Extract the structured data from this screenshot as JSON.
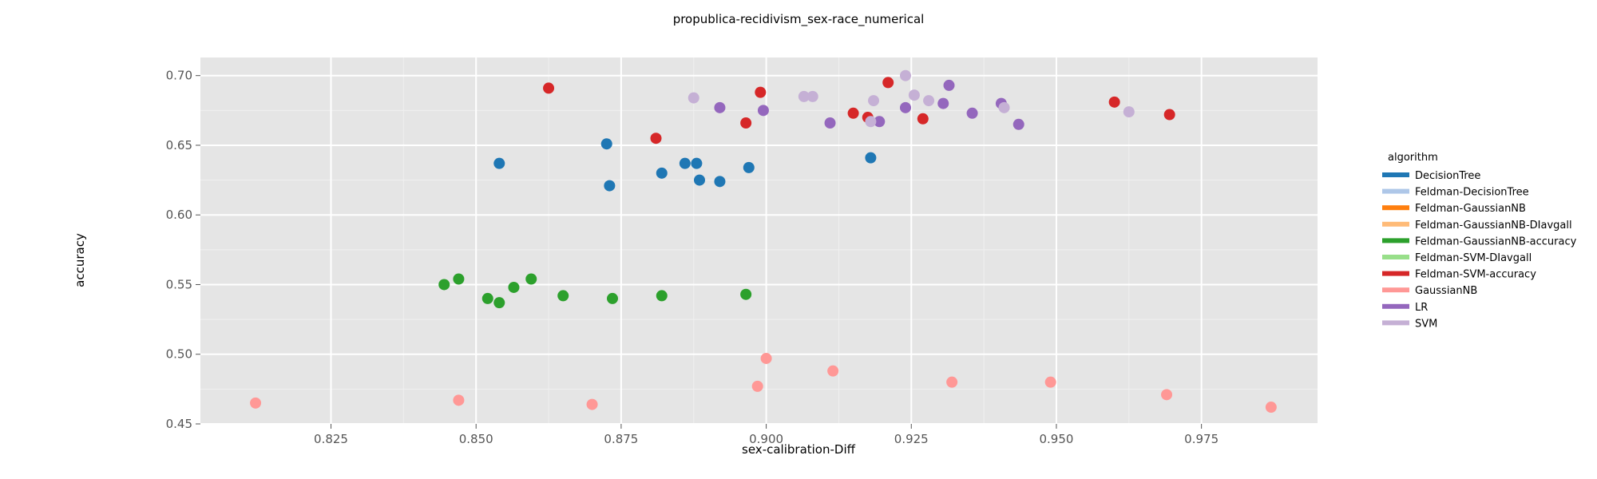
{
  "chart_data": {
    "type": "scatter",
    "title": "propublica-recidivism_sex-race_numerical",
    "xlabel": "sex-calibration-Diff",
    "ylabel": "accuracy",
    "xlim": [
      0.8025,
      0.995
    ],
    "ylim": [
      0.45,
      0.713
    ],
    "xticks": [
      0.825,
      0.85,
      0.875,
      0.9,
      0.925,
      0.95,
      0.975
    ],
    "xtick_labels": [
      "0.825",
      "0.850",
      "0.875",
      "0.900",
      "0.925",
      "0.950",
      "0.975"
    ],
    "yticks": [
      0.45,
      0.5,
      0.55,
      0.6,
      0.65,
      0.7
    ],
    "ytick_labels": [
      "0.45",
      "0.50",
      "0.55",
      "0.60",
      "0.65",
      "0.70"
    ],
    "grid": true,
    "legend_title": "algorithm",
    "legend_position": "right",
    "series": [
      {
        "name": "DecisionTree",
        "color": "#1f77b4",
        "x": [
          0.854,
          0.8725,
          0.873,
          0.882,
          0.886,
          0.888,
          0.8885,
          0.892,
          0.897,
          0.918
        ],
        "y": [
          0.637,
          0.651,
          0.621,
          0.63,
          0.637,
          0.637,
          0.625,
          0.624,
          0.634,
          0.641
        ]
      },
      {
        "name": "Feldman-DecisionTree",
        "color": "#aec7e8",
        "x": [],
        "y": []
      },
      {
        "name": "Feldman-GaussianNB",
        "color": "#ff7f0e",
        "x": [],
        "y": []
      },
      {
        "name": "Feldman-GaussianNB-DIavgall",
        "color": "#ffbb78",
        "x": [],
        "y": []
      },
      {
        "name": "Feldman-GaussianNB-accuracy",
        "color": "#2ca02c",
        "x": [
          0.8445,
          0.847,
          0.852,
          0.854,
          0.8565,
          0.8595,
          0.865,
          0.8735,
          0.882,
          0.8965
        ],
        "y": [
          0.55,
          0.554,
          0.54,
          0.537,
          0.548,
          0.554,
          0.542,
          0.54,
          0.542,
          0.543
        ]
      },
      {
        "name": "Feldman-SVM-DIavgall",
        "color": "#98df8a",
        "x": [],
        "y": []
      },
      {
        "name": "Feldman-SVM-accuracy",
        "color": "#d62728",
        "x": [
          0.8625,
          0.881,
          0.8965,
          0.899,
          0.915,
          0.9175,
          0.921,
          0.927,
          0.96,
          0.9695
        ],
        "y": [
          0.691,
          0.655,
          0.666,
          0.688,
          0.673,
          0.67,
          0.695,
          0.669,
          0.681,
          0.672
        ]
      },
      {
        "name": "GaussianNB",
        "color": "#ff9896",
        "x": [
          0.812,
          0.847,
          0.87,
          0.8985,
          0.9,
          0.9115,
          0.932,
          0.949,
          0.969,
          0.987
        ],
        "y": [
          0.465,
          0.467,
          0.464,
          0.477,
          0.497,
          0.488,
          0.48,
          0.48,
          0.471,
          0.462
        ]
      },
      {
        "name": "LR",
        "color": "#9467bd",
        "x": [
          0.892,
          0.8995,
          0.911,
          0.9195,
          0.924,
          0.9305,
          0.9315,
          0.9355,
          0.9405,
          0.9435
        ],
        "y": [
          0.677,
          0.675,
          0.666,
          0.667,
          0.677,
          0.68,
          0.693,
          0.673,
          0.68,
          0.665
        ]
      },
      {
        "name": "SVM",
        "color": "#c5b0d5",
        "x": [
          0.8875,
          0.9065,
          0.908,
          0.918,
          0.9185,
          0.924,
          0.9255,
          0.928,
          0.941,
          0.9625
        ],
        "y": [
          0.684,
          0.685,
          0.685,
          0.667,
          0.682,
          0.7,
          0.686,
          0.682,
          0.677,
          0.674
        ]
      }
    ]
  }
}
